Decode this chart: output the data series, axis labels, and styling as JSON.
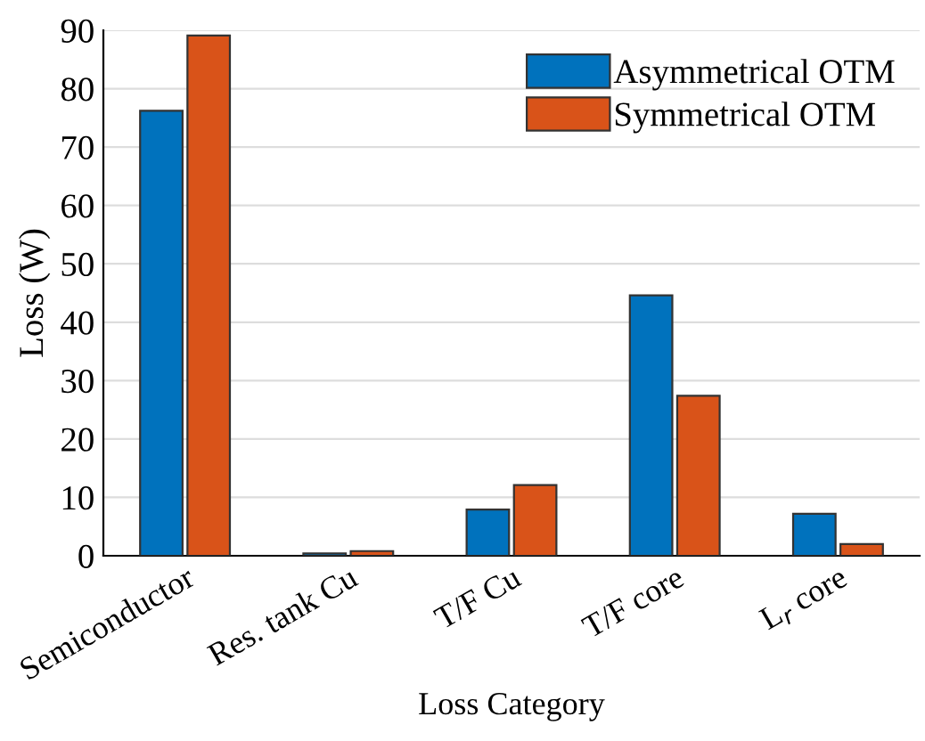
{
  "chart_data": {
    "type": "bar",
    "xlabel": "Loss Category",
    "ylabel": "Loss (W)",
    "categories": [
      "Semiconductor",
      "Res. tank Cu",
      "T/F Cu",
      "T/F core",
      "L$_{r}$ core"
    ],
    "series": [
      {
        "name": "Asymmetrical OTM",
        "color": "#0072bd",
        "values": [
          76.2,
          0.4,
          7.9,
          44.6,
          7.2
        ]
      },
      {
        "name": "Symmetrical OTM",
        "color": "#d95319",
        "values": [
          89.1,
          0.8,
          12.1,
          27.4,
          2.0
        ]
      }
    ],
    "ylim": [
      0,
      90
    ],
    "yticks": [
      0,
      10,
      20,
      30,
      40,
      50,
      60,
      70,
      80,
      90
    ],
    "grid": "y",
    "legend": "top right"
  }
}
